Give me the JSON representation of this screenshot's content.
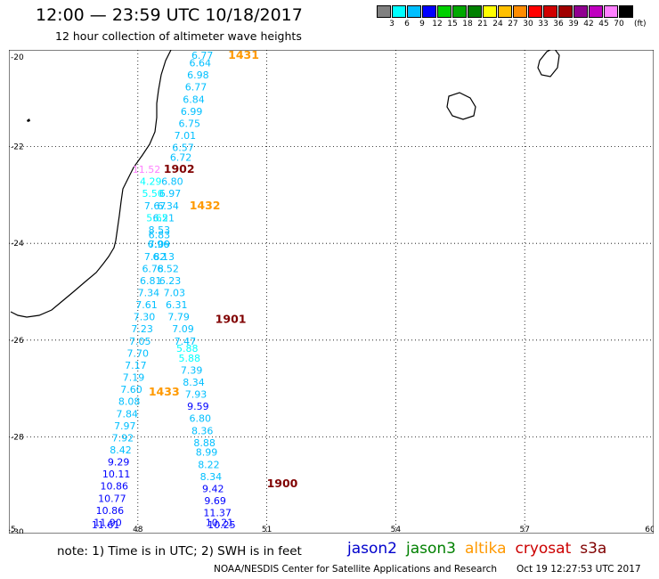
{
  "header": {
    "title": "12:00 — 23:59 UTC 10/18/2017",
    "subtitle": "12 hour collection of altimeter wave heights"
  },
  "colorbar": {
    "colors": [
      "#808080",
      "#00ffff",
      "#00bfff",
      "#0000ff",
      "#00d000",
      "#00a800",
      "#008000",
      "#ffff00",
      "#ffc000",
      "#ff8c00",
      "#ff0000",
      "#d00000",
      "#a00000",
      "#900090",
      "#c000c0",
      "#ff80ff",
      "#000000"
    ],
    "labels": [
      "3",
      "6",
      "9",
      "12",
      "15",
      "18",
      "21",
      "24",
      "27",
      "30",
      "33",
      "36",
      "39",
      "42",
      "45",
      "70"
    ],
    "unit": "(ft)"
  },
  "map": {
    "lon_range": [
      45,
      60
    ],
    "lat_range": [
      -30,
      -20
    ],
    "x_ticks": [
      "45",
      "48",
      "51",
      "54",
      "57",
      "60"
    ],
    "y_ticks": [
      "-20",
      "-22",
      "-24",
      "-26",
      "-28",
      "-30"
    ],
    "grid": "dotted",
    "track_labels": [
      {
        "text": "1431",
        "lon": 50.1,
        "lat": -20.0,
        "color": "#ff9900"
      },
      {
        "text": "1902",
        "lon": 48.6,
        "lat": -22.45,
        "color": "#800000"
      },
      {
        "text": "1432",
        "lon": 49.2,
        "lat": -23.2,
        "color": "#ff9900"
      },
      {
        "text": "1901",
        "lon": 49.8,
        "lat": -25.55,
        "color": "#800000"
      },
      {
        "text": "1433",
        "lon": 48.25,
        "lat": -27.05,
        "color": "#ff9900"
      },
      {
        "text": "1900",
        "lon": 51.0,
        "lat": -28.95,
        "color": "#800000"
      }
    ],
    "wave_heights": [
      {
        "v": "6.77",
        "lon": 49.5,
        "lat": -20.0,
        "color": "#00bfff"
      },
      {
        "v": "6.64",
        "lon": 49.45,
        "lat": -20.25,
        "color": "#00bfff"
      },
      {
        "v": "6.98",
        "lon": 49.4,
        "lat": -20.5,
        "color": "#00bfff"
      },
      {
        "v": "6.77",
        "lon": 49.35,
        "lat": -20.75,
        "color": "#00bfff"
      },
      {
        "v": "6.84",
        "lon": 49.3,
        "lat": -21.0,
        "color": "#00bfff"
      },
      {
        "v": "6.99",
        "lon": 49.25,
        "lat": -21.25,
        "color": "#00bfff"
      },
      {
        "v": "6.75",
        "lon": 49.2,
        "lat": -21.5,
        "color": "#00bfff"
      },
      {
        "v": "7.01",
        "lon": 49.1,
        "lat": -21.75,
        "color": "#00bfff"
      },
      {
        "v": "6.57",
        "lon": 49.05,
        "lat": -22.0,
        "color": "#00bfff"
      },
      {
        "v": "6.72",
        "lon": 49.0,
        "lat": -22.2,
        "color": "#00bfff"
      },
      {
        "v": "11.52",
        "lon": 48.2,
        "lat": -22.45,
        "color": "#ff80ff"
      },
      {
        "v": "6.80",
        "lon": 48.8,
        "lat": -22.7,
        "color": "#00bfff"
      },
      {
        "v": "4.29",
        "lon": 48.3,
        "lat": -22.7,
        "color": "#00ffff"
      },
      {
        "v": "6.97",
        "lon": 48.75,
        "lat": -22.95,
        "color": "#00bfff"
      },
      {
        "v": "5.50",
        "lon": 48.35,
        "lat": -22.95,
        "color": "#00ffff"
      },
      {
        "v": "6.34",
        "lon": 48.7,
        "lat": -23.2,
        "color": "#00bfff"
      },
      {
        "v": "7.67",
        "lon": 48.4,
        "lat": -23.2,
        "color": "#00bfff"
      },
      {
        "v": "6.21",
        "lon": 48.6,
        "lat": -23.45,
        "color": "#00bfff"
      },
      {
        "v": "5.65",
        "lon": 48.45,
        "lat": -23.45,
        "color": "#00ffff"
      },
      {
        "v": "8.53",
        "lon": 48.5,
        "lat": -23.7,
        "color": "#00bfff"
      },
      {
        "v": "6.83",
        "lon": 48.5,
        "lat": -23.8,
        "color": "#00bfff"
      },
      {
        "v": "6.96",
        "lon": 48.48,
        "lat": -24.0,
        "color": "#00bfff"
      },
      {
        "v": "7.09",
        "lon": 48.5,
        "lat": -24.0,
        "color": "#00bfff"
      },
      {
        "v": "7.82",
        "lon": 48.4,
        "lat": -24.25,
        "color": "#00bfff"
      },
      {
        "v": "6.13",
        "lon": 48.6,
        "lat": -24.25,
        "color": "#00bfff"
      },
      {
        "v": "6.78",
        "lon": 48.35,
        "lat": -24.5,
        "color": "#00bfff"
      },
      {
        "v": "6.52",
        "lon": 48.7,
        "lat": -24.5,
        "color": "#00bfff"
      },
      {
        "v": "6.81",
        "lon": 48.3,
        "lat": -24.75,
        "color": "#00bfff"
      },
      {
        "v": "6.23",
        "lon": 48.75,
        "lat": -24.75,
        "color": "#00bfff"
      },
      {
        "v": "7.34",
        "lon": 48.25,
        "lat": -25.0,
        "color": "#00bfff"
      },
      {
        "v": "7.03",
        "lon": 48.85,
        "lat": -25.0,
        "color": "#00bfff"
      },
      {
        "v": "7.61",
        "lon": 48.2,
        "lat": -25.25,
        "color": "#00bfff"
      },
      {
        "v": "6.31",
        "lon": 48.9,
        "lat": -25.25,
        "color": "#00bfff"
      },
      {
        "v": "7.30",
        "lon": 48.15,
        "lat": -25.5,
        "color": "#00bfff"
      },
      {
        "v": "7.79",
        "lon": 48.95,
        "lat": -25.5,
        "color": "#00bfff"
      },
      {
        "v": "7.23",
        "lon": 48.1,
        "lat": -25.75,
        "color": "#00bfff"
      },
      {
        "v": "7.09",
        "lon": 49.05,
        "lat": -25.75,
        "color": "#00bfff"
      },
      {
        "v": "7.05",
        "lon": 48.05,
        "lat": -26.0,
        "color": "#00bfff"
      },
      {
        "v": "7.47",
        "lon": 49.1,
        "lat": -26.0,
        "color": "#00bfff"
      },
      {
        "v": "7.70",
        "lon": 48.0,
        "lat": -26.25,
        "color": "#00bfff"
      },
      {
        "v": "5.88",
        "lon": 49.15,
        "lat": -26.15,
        "color": "#00ffff"
      },
      {
        "v": "5.88",
        "lon": 49.2,
        "lat": -26.35,
        "color": "#00ffff"
      },
      {
        "v": "7.17",
        "lon": 47.95,
        "lat": -26.5,
        "color": "#00bfff"
      },
      {
        "v": "7.39",
        "lon": 49.25,
        "lat": -26.6,
        "color": "#00bfff"
      },
      {
        "v": "7.19",
        "lon": 47.9,
        "lat": -26.75,
        "color": "#00bfff"
      },
      {
        "v": "8.34",
        "lon": 49.3,
        "lat": -26.85,
        "color": "#00bfff"
      },
      {
        "v": "7.60",
        "lon": 47.85,
        "lat": -27.0,
        "color": "#00bfff"
      },
      {
        "v": "7.93",
        "lon": 49.35,
        "lat": -27.1,
        "color": "#00bfff"
      },
      {
        "v": "8.08",
        "lon": 47.8,
        "lat": -27.25,
        "color": "#00bfff"
      },
      {
        "v": "9.59",
        "lon": 49.4,
        "lat": -27.35,
        "color": "#0000ff"
      },
      {
        "v": "7.84",
        "lon": 47.75,
        "lat": -27.5,
        "color": "#00bfff"
      },
      {
        "v": "6.80",
        "lon": 49.45,
        "lat": -27.6,
        "color": "#00bfff"
      },
      {
        "v": "7.97",
        "lon": 47.7,
        "lat": -27.75,
        "color": "#00bfff"
      },
      {
        "v": "8.36",
        "lon": 49.5,
        "lat": -27.85,
        "color": "#00bfff"
      },
      {
        "v": "7.92",
        "lon": 47.65,
        "lat": -28.0,
        "color": "#00bfff"
      },
      {
        "v": "8.88",
        "lon": 49.55,
        "lat": -28.1,
        "color": "#00bfff"
      },
      {
        "v": "8.42",
        "lon": 47.6,
        "lat": -28.25,
        "color": "#00bfff"
      },
      {
        "v": "8.99",
        "lon": 49.6,
        "lat": -28.3,
        "color": "#00bfff"
      },
      {
        "v": "9.29",
        "lon": 47.55,
        "lat": -28.5,
        "color": "#0000ff"
      },
      {
        "v": "8.22",
        "lon": 49.65,
        "lat": -28.55,
        "color": "#00bfff"
      },
      {
        "v": "10.11",
        "lon": 47.5,
        "lat": -28.75,
        "color": "#0000ff"
      },
      {
        "v": "8.34",
        "lon": 49.7,
        "lat": -28.8,
        "color": "#00bfff"
      },
      {
        "v": "10.86",
        "lon": 47.45,
        "lat": -29.0,
        "color": "#0000ff"
      },
      {
        "v": "9.42",
        "lon": 49.75,
        "lat": -29.05,
        "color": "#0000ff"
      },
      {
        "v": "10.77",
        "lon": 47.4,
        "lat": -29.25,
        "color": "#0000ff"
      },
      {
        "v": "9.69",
        "lon": 49.8,
        "lat": -29.3,
        "color": "#0000ff"
      },
      {
        "v": "10.86",
        "lon": 47.35,
        "lat": -29.5,
        "color": "#0000ff"
      },
      {
        "v": "11.37",
        "lon": 49.85,
        "lat": -29.55,
        "color": "#0000ff"
      },
      {
        "v": "11.90",
        "lon": 47.3,
        "lat": -29.75,
        "color": "#0000ff"
      },
      {
        "v": "10.21",
        "lon": 49.9,
        "lat": -29.75,
        "color": "#0000ff"
      },
      {
        "v": "11.61",
        "lon": 47.25,
        "lat": -30.0,
        "color": "#0000ff"
      },
      {
        "v": "10.25",
        "lon": 49.95,
        "lat": -30.0,
        "color": "#0000ff"
      }
    ]
  },
  "footer": {
    "note": "note:  1) Time is in UTC;  2) SWH is in feet",
    "credit": "NOAA/NESDIS Center for Satellite Applications and Research",
    "timestamp": "Oct 19 12:27:53 UTC 2017"
  },
  "legend": [
    {
      "label": "jason2",
      "color": "#0000cc"
    },
    {
      "label": "jason3",
      "color": "#008000"
    },
    {
      "label": "altika",
      "color": "#ff9900"
    },
    {
      "label": "cryosat",
      "color": "#cc0000"
    },
    {
      "label": "s3a",
      "color": "#800000"
    }
  ]
}
